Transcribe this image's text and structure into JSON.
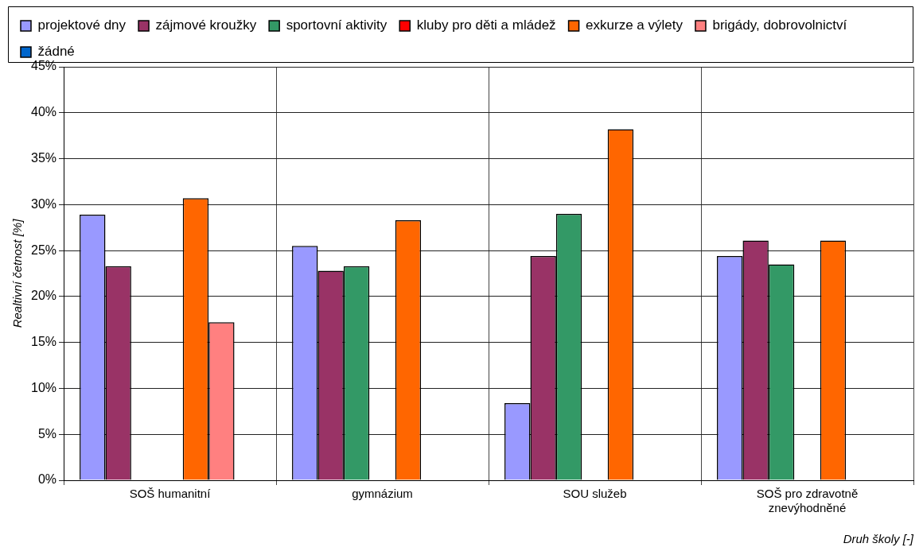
{
  "chart_data": {
    "type": "bar",
    "xlabel": "Druh školy [-]",
    "ylabel": "Realtivní četnost [%]",
    "categories": [
      "SOŠ humanitní",
      "gymnázium",
      "SOU služeb",
      "SOŠ pro zdravotně znevýhodněné"
    ],
    "series": [
      {
        "name": "projektové dny",
        "color": "#9999ff",
        "values": [
          28.9,
          25.5,
          8.4,
          24.4
        ]
      },
      {
        "name": "zájmové kroužky",
        "color": "#993366",
        "values": [
          23.3,
          22.8,
          24.4,
          26.1
        ]
      },
      {
        "name": "sportovní aktivity",
        "color": "#339966",
        "values": [
          null,
          23.3,
          29.0,
          23.5
        ]
      },
      {
        "name": "kluby pro děti a mládež",
        "color": "#ff0000",
        "values": [
          null,
          null,
          null,
          null
        ]
      },
      {
        "name": "exkurze a výlety",
        "color": "#ff6600",
        "values": [
          30.7,
          28.3,
          38.2,
          26.1
        ]
      },
      {
        "name": "brigády, dobrovolnictví",
        "color": "#ff8080",
        "values": [
          17.2,
          null,
          null,
          null
        ]
      },
      {
        "name": "žádné",
        "color": "#0066cc",
        "values": [
          null,
          null,
          null,
          null
        ]
      }
    ],
    "ylim": [
      0,
      45
    ],
    "yticks": [
      {
        "value": 0,
        "label": "0%"
      },
      {
        "value": 5,
        "label": "5%"
      },
      {
        "value": 10,
        "label": "10%"
      },
      {
        "value": 15,
        "label": "15%"
      },
      {
        "value": 20,
        "label": "20%"
      },
      {
        "value": 25,
        "label": "25%"
      },
      {
        "value": 30,
        "label": "30%"
      },
      {
        "value": 35,
        "label": "35%"
      },
      {
        "value": 40,
        "label": "40%"
      },
      {
        "value": 45,
        "label": "45%"
      }
    ],
    "grid": true,
    "legend": "top"
  }
}
